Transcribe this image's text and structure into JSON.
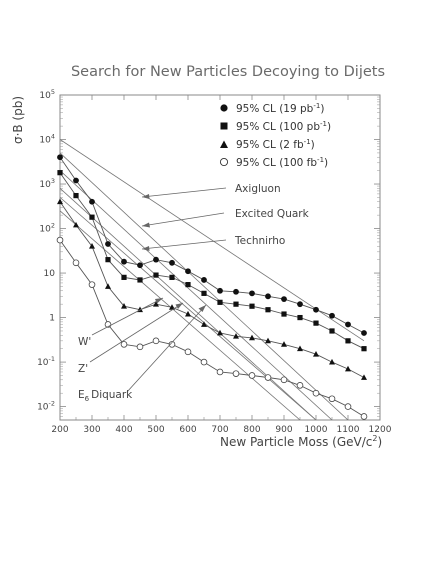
{
  "chart_data": {
    "type": "line",
    "title": "Search for New Particles Decoying to Dijets",
    "xlabel": "New Particle Moss (GeV/c",
    "xlabel_sup": "2",
    "xlabel_end": ")",
    "ylabel": "σ·B (pb)",
    "x_scale": "linear",
    "y_scale": "log",
    "xlim": [
      200,
      1200
    ],
    "ylim": [
      0.005,
      100000
    ],
    "x_ticks": [
      200,
      300,
      400,
      500,
      600,
      700,
      800,
      900,
      1000,
      1100,
      1200
    ],
    "y_ticks": [
      {
        "value": 0.01,
        "base": "10",
        "exp": "-2"
      },
      {
        "value": 0.1,
        "base": "10",
        "exp": "-1"
      },
      {
        "value": 1,
        "base": "1",
        "exp": ""
      },
      {
        "value": 10,
        "base": "10",
        "exp": ""
      },
      {
        "value": 100,
        "base": "10",
        "exp": "2"
      },
      {
        "value": 1000,
        "base": "10",
        "exp": "3"
      },
      {
        "value": 10000,
        "base": "10",
        "exp": "4"
      },
      {
        "value": 100000,
        "base": "10",
        "exp": "5"
      }
    ],
    "grid": false,
    "legend_position": "top-right",
    "series": [
      {
        "label_main": "95% CL (19 pb",
        "label_sup": "-1",
        "label_end": ")",
        "marker": "filled-circle",
        "x": [
          200,
          250,
          300,
          350,
          400,
          450,
          500,
          550,
          600,
          650,
          700,
          750,
          800,
          850,
          900,
          950,
          1000,
          1050,
          1100,
          1150
        ],
        "y": [
          4000,
          1200,
          400,
          45,
          18,
          15,
          20,
          17,
          11,
          7,
          4,
          3.8,
          3.5,
          3.0,
          2.6,
          2.0,
          1.5,
          1.1,
          0.7,
          0.45
        ]
      },
      {
        "label_main": "95% CL (100 pb",
        "label_sup": "-1",
        "label_end": ")",
        "marker": "filled-square",
        "x": [
          200,
          250,
          300,
          350,
          400,
          450,
          500,
          550,
          600,
          650,
          700,
          750,
          800,
          850,
          900,
          950,
          1000,
          1050,
          1100,
          1150
        ],
        "y": [
          1800,
          550,
          180,
          20,
          8,
          7,
          9,
          8,
          5.5,
          3.5,
          2.2,
          2.0,
          1.8,
          1.5,
          1.2,
          1.0,
          0.75,
          0.5,
          0.3,
          0.2
        ]
      },
      {
        "label_main": "95% CL (2 fb",
        "label_sup": "-1",
        "label_end": ")",
        "marker": "filled-triangle",
        "x": [
          200,
          250,
          300,
          350,
          400,
          450,
          500,
          550,
          600,
          650,
          700,
          750,
          800,
          850,
          900,
          950,
          1000,
          1050,
          1100,
          1150
        ],
        "y": [
          400,
          120,
          40,
          5,
          1.8,
          1.5,
          2.0,
          1.7,
          1.2,
          0.7,
          0.45,
          0.38,
          0.35,
          0.3,
          0.25,
          0.2,
          0.15,
          0.1,
          0.07,
          0.045
        ]
      },
      {
        "label_main": "95% CL (100 fb",
        "label_sup": "-1",
        "label_end": ")",
        "marker": "open-circle",
        "x": [
          200,
          250,
          300,
          350,
          400,
          450,
          500,
          550,
          600,
          650,
          700,
          750,
          800,
          850,
          900,
          950,
          1000,
          1050,
          1100,
          1150
        ],
        "y": [
          55,
          17,
          5.5,
          0.7,
          0.25,
          0.22,
          0.3,
          0.25,
          0.17,
          0.1,
          0.06,
          0.055,
          0.05,
          0.045,
          0.04,
          0.03,
          0.02,
          0.015,
          0.01,
          0.006
        ]
      }
    ],
    "theory_curves": [
      {
        "label": "Axigluon",
        "x": [
          200,
          1150
        ],
        "y": [
          10000,
          0.3
        ]
      },
      {
        "label": "Excited Quark",
        "x": [
          200,
          1100
        ],
        "y": [
          5000,
          0.005
        ]
      },
      {
        "label": "Technirho",
        "x": [
          200,
          1050
        ],
        "y": [
          2000,
          0.005
        ]
      },
      {
        "label": "W'",
        "x": [
          200,
          1000
        ],
        "y": [
          500,
          0.005
        ]
      },
      {
        "label": "Z'",
        "x": [
          200,
          950
        ],
        "y": [
          250,
          0.005
        ]
      },
      {
        "label": "Diquark",
        "label_prefix": "E",
        "label_sub": "6",
        "x": [
          200,
          1000
        ],
        "y": [
          800,
          0.005
        ]
      }
    ]
  }
}
